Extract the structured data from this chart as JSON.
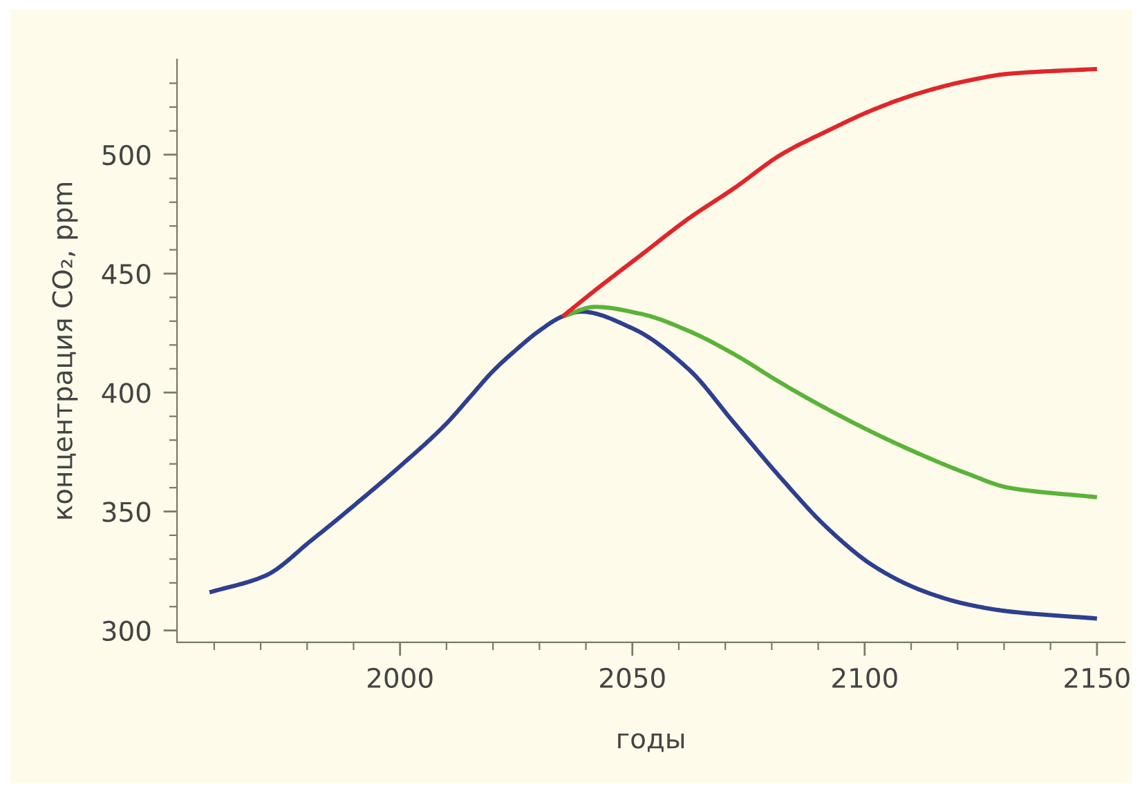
{
  "chart_data": {
    "type": "line",
    "xlabel": "годы",
    "ylabel": "концентрация CO₂, ppm",
    "xlim": [
      1952,
      2156
    ],
    "ylim": [
      295,
      540
    ],
    "xticks": [
      {
        "value": 1960,
        "label": null
      },
      {
        "value": 1970,
        "label": null
      },
      {
        "value": 1980,
        "label": null
      },
      {
        "value": 1990,
        "label": null
      },
      2000,
      {
        "value": 2010,
        "label": null
      },
      {
        "value": 2020,
        "label": null
      },
      {
        "value": 2030,
        "label": null
      },
      {
        "value": 2040,
        "label": null
      },
      2050,
      {
        "value": 2060,
        "label": null
      },
      {
        "value": 2070,
        "label": null
      },
      {
        "value": 2080,
        "label": null
      },
      {
        "value": 2090,
        "label": null
      },
      2100,
      {
        "value": 2110,
        "label": null
      },
      {
        "value": 2120,
        "label": null
      },
      {
        "value": 2130,
        "label": null
      },
      {
        "value": 2140,
        "label": null
      },
      2150
    ],
    "yticks": [
      300,
      {
        "value": 310,
        "label": null
      },
      {
        "value": 320,
        "label": null
      },
      {
        "value": 330,
        "label": null
      },
      {
        "value": 340,
        "label": null
      },
      350,
      {
        "value": 360,
        "label": null
      },
      {
        "value": 370,
        "label": null
      },
      {
        "value": 380,
        "label": null
      },
      {
        "value": 390,
        "label": null
      },
      400,
      {
        "value": 410,
        "label": null
      },
      {
        "value": 420,
        "label": null
      },
      {
        "value": 430,
        "label": null
      },
      {
        "value": 440,
        "label": null
      },
      450,
      {
        "value": 460,
        "label": null
      },
      {
        "value": 470,
        "label": null
      },
      {
        "value": 480,
        "label": null
      },
      {
        "value": 490,
        "label": null
      },
      500,
      {
        "value": 510,
        "label": null
      },
      {
        "value": 520,
        "label": null
      },
      {
        "value": 530,
        "label": null
      }
    ],
    "grid": false,
    "legend": false,
    "series": [
      {
        "color": "#e0262b",
        "x": [
          2035,
          2042,
          2052,
          2062,
          2072,
          2082,
          2092,
          2102,
          2112,
          2122,
          2131,
          2150
        ],
        "values": [
          432,
          443,
          458,
          473,
          486,
          500,
          510,
          519,
          526,
          531,
          534,
          536
        ]
      },
      {
        "color": "#5bb33a",
        "x": [
          2035,
          2042,
          2052,
          2062,
          2072,
          2082,
          2092,
          2102,
          2112,
          2122,
          2131,
          2150
        ],
        "values": [
          432,
          436,
          433,
          426,
          416,
          404,
          393,
          383,
          374,
          366,
          360,
          356
        ]
      },
      {
        "color": "#2e3f8f",
        "x": [
          1959,
          1971,
          1981,
          1991,
          2000,
          2010,
          2015,
          2020,
          2025,
          2030,
          2035,
          2039,
          2050,
          2062,
          2072,
          2082,
          2092,
          2102,
          2112,
          2122,
          2131,
          2150
        ],
        "values": [
          316,
          323,
          338,
          354,
          369,
          387,
          398,
          409,
          418,
          426,
          432,
          434,
          427,
          410,
          387,
          364,
          343,
          327,
          317,
          311,
          308,
          305
        ]
      }
    ]
  }
}
